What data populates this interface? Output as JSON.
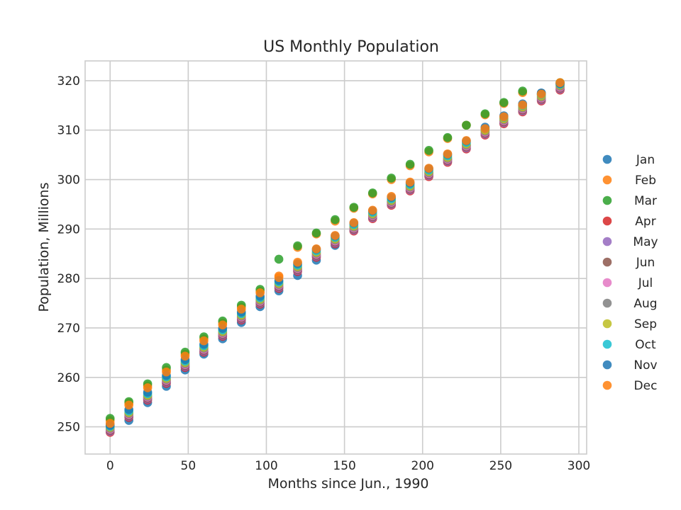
{
  "chart_data": {
    "type": "scatter",
    "title": "US Monthly Population",
    "xlabel": "Months since Jun., 1990",
    "ylabel": "Population, Millions",
    "xlim": [
      -16,
      305
    ],
    "ylim": [
      244.5,
      324
    ],
    "x_ticks": [
      0,
      50,
      100,
      150,
      200,
      250,
      300
    ],
    "x_tick_labels": [
      "0",
      "50",
      "100",
      "150",
      "200",
      "250",
      "300"
    ],
    "y_ticks": [
      250,
      260,
      270,
      280,
      290,
      300,
      310,
      320
    ],
    "y_tick_labels": [
      "250",
      "260",
      "270",
      "280",
      "290",
      "300",
      "310",
      "320"
    ],
    "grid": true,
    "legend_position": "right",
    "x": [
      0,
      12,
      24,
      36,
      48,
      60,
      72,
      84,
      96,
      108,
      120,
      132,
      144,
      156,
      168,
      180,
      192,
      204,
      216,
      228,
      240,
      252,
      264,
      276,
      288
    ],
    "series": [
      {
        "name": "Jan",
        "color": "#1f77b4",
        "values": [
          250.3,
          251.3,
          254.9,
          258.2,
          261.5,
          264.7,
          267.8,
          271.1,
          274.3,
          277.5,
          280.6,
          283.7,
          286.7,
          289.8,
          292.6,
          295.5,
          298.4,
          301.3,
          304.1,
          306.9,
          309.6,
          312.3,
          314.9,
          317.5,
          319.4
        ]
      },
      {
        "name": "Feb",
        "color": "#ff7f0e",
        "values": [
          251.3,
          254.8,
          258.3,
          261.5,
          264.7,
          267.8,
          271.0,
          274.2,
          277.4,
          280.5,
          286.3,
          289.0,
          291.6,
          294.2,
          297.1,
          300.0,
          302.8,
          305.6,
          308.3,
          311.0,
          313.1,
          315.4,
          317.6,
          317.2,
          319.5
        ]
      },
      {
        "name": "Mar",
        "color": "#2ca02c",
        "values": [
          251.7,
          255.1,
          258.7,
          262.0,
          265.1,
          268.2,
          271.4,
          274.6,
          277.8,
          283.9,
          286.6,
          289.2,
          291.9,
          294.4,
          297.3,
          300.3,
          303.1,
          305.9,
          308.5,
          311.0,
          313.3,
          315.6,
          317.9,
          317.3,
          319.6
        ]
      },
      {
        "name": "Apr",
        "color": "#d62728",
        "values": [
          248.9,
          251.9,
          255.4,
          258.8,
          262.0,
          265.1,
          268.3,
          271.6,
          274.8,
          278.0,
          281.4,
          284.3,
          287.0,
          289.6,
          292.1,
          294.8,
          297.7,
          300.6,
          303.5,
          306.2,
          309.0,
          311.3,
          313.7,
          315.9,
          318.1
        ]
      },
      {
        "name": "May",
        "color": "#9467bd",
        "values": [
          249.1,
          252.1,
          255.6,
          259.0,
          262.2,
          265.3,
          268.5,
          271.8,
          275.0,
          278.2,
          281.6,
          284.5,
          287.2,
          289.8,
          292.3,
          295.0,
          297.9,
          300.8,
          303.7,
          306.4,
          309.2,
          311.5,
          313.9,
          316.1,
          318.3
        ]
      },
      {
        "name": "Jun",
        "color": "#8c564b",
        "values": [
          249.3,
          252.3,
          255.8,
          259.2,
          262.4,
          265.5,
          268.7,
          272.0,
          275.2,
          278.4,
          281.8,
          284.7,
          287.4,
          290.0,
          292.5,
          295.2,
          298.1,
          301.0,
          303.9,
          306.6,
          309.4,
          311.7,
          314.1,
          316.3,
          318.5
        ]
      },
      {
        "name": "Jul",
        "color": "#e377c2",
        "values": [
          249.5,
          252.5,
          256.0,
          259.4,
          262.6,
          265.7,
          268.9,
          272.2,
          275.4,
          278.6,
          282.0,
          284.9,
          287.6,
          290.2,
          292.7,
          295.4,
          298.3,
          301.2,
          304.1,
          306.8,
          309.6,
          311.9,
          314.3,
          316.5,
          318.7
        ]
      },
      {
        "name": "Aug",
        "color": "#7f7f7f",
        "values": [
          249.7,
          252.7,
          256.2,
          259.6,
          262.8,
          265.9,
          269.1,
          272.4,
          275.6,
          278.8,
          282.2,
          285.1,
          287.8,
          290.4,
          292.9,
          295.6,
          298.5,
          301.4,
          304.3,
          307.0,
          309.8,
          312.1,
          314.5,
          316.7,
          318.9
        ]
      },
      {
        "name": "Sep",
        "color": "#bcbd22",
        "values": [
          249.9,
          252.9,
          256.4,
          259.8,
          263.0,
          266.1,
          269.3,
          272.6,
          275.8,
          279.0,
          282.4,
          285.3,
          288.0,
          290.6,
          293.1,
          295.8,
          298.7,
          301.6,
          304.5,
          307.2,
          310.0,
          312.3,
          314.7,
          316.9,
          319.1
        ]
      },
      {
        "name": "Oct",
        "color": "#17becf",
        "values": [
          250.1,
          253.2,
          256.7,
          260.1,
          263.3,
          266.4,
          269.6,
          272.9,
          276.1,
          279.3,
          282.7,
          285.6,
          288.3,
          290.9,
          293.4,
          296.1,
          299.0,
          301.9,
          304.8,
          307.5,
          310.3,
          312.6,
          315.0,
          317.2,
          319.3
        ]
      },
      {
        "name": "Nov",
        "color": "#1f77b4",
        "values": [
          250.3,
          253.5,
          257.0,
          260.4,
          263.6,
          266.7,
          269.9,
          273.2,
          276.4,
          279.6,
          283.0,
          285.9,
          288.6,
          291.2,
          293.7,
          296.4,
          299.3,
          302.2,
          305.1,
          307.8,
          310.6,
          312.9,
          315.3,
          317.5,
          319.4
        ]
      },
      {
        "name": "Dec",
        "color": "#ff7f0e",
        "values": [
          250.7,
          254.4,
          257.9,
          261.1,
          264.3,
          267.4,
          270.6,
          273.8,
          277.1,
          280.2,
          283.3,
          286.0,
          288.7,
          291.3,
          293.8,
          296.6,
          299.5,
          302.3,
          305.2,
          307.9,
          310.3,
          312.7,
          315.1,
          317.3,
          319.6
        ]
      }
    ]
  }
}
